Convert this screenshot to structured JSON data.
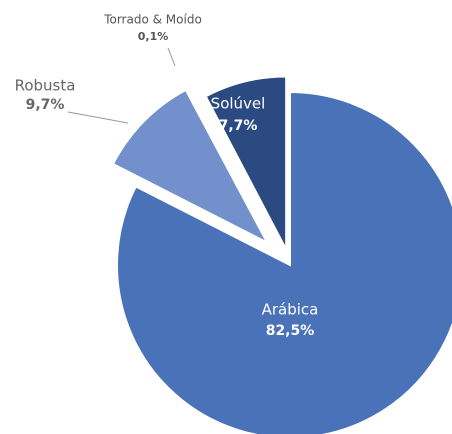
{
  "chart_data": {
    "type": "pie",
    "categories": [
      "Arábica",
      "Robusta",
      "Torrado & Moído",
      "Solúvel"
    ],
    "values": [
      82.5,
      9.7,
      0.1,
      7.7
    ],
    "value_labels": [
      "82,5%",
      "9,7%",
      "0,1%",
      "7,7%"
    ],
    "colors": [
      "#4a72b8",
      "#7190cc",
      "#1f2b5c",
      "#2c4a82"
    ]
  }
}
